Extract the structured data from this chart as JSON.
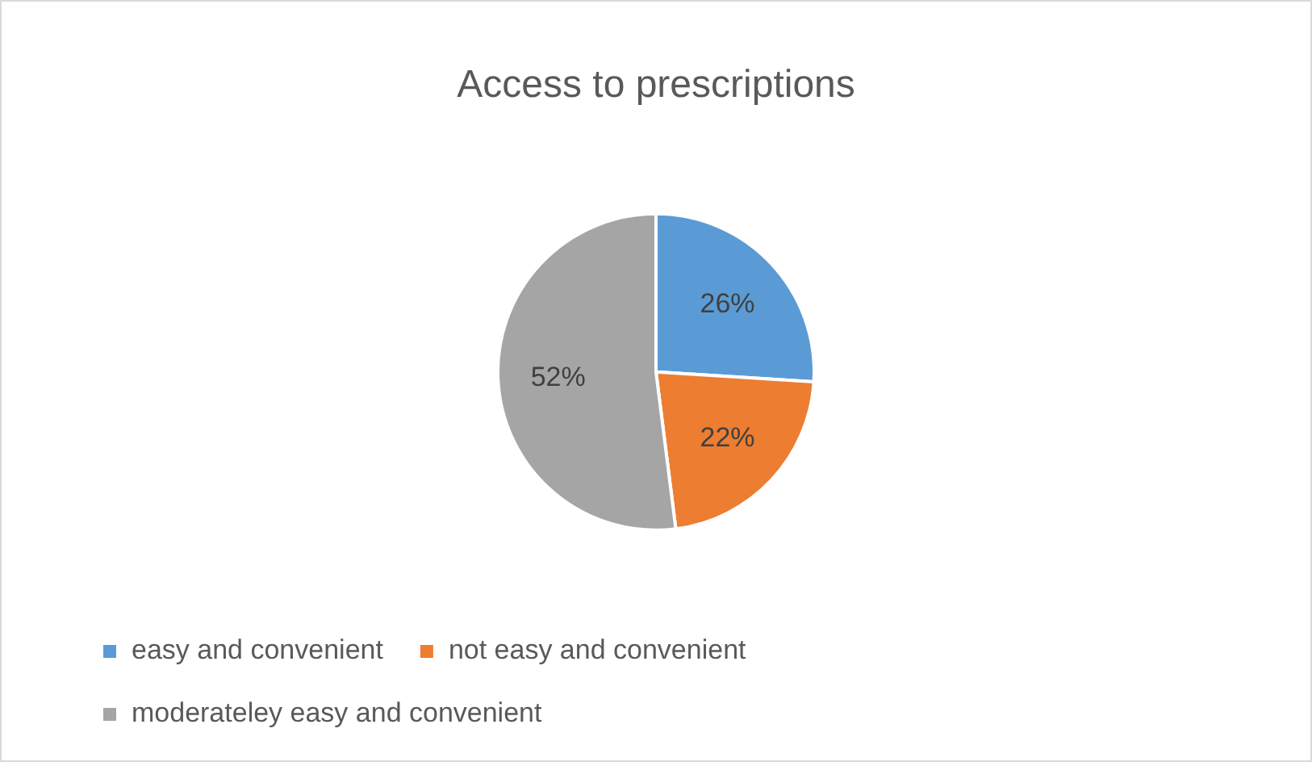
{
  "chart_data": {
    "type": "pie",
    "title": "Access to prescriptions",
    "categories": [
      "easy and convenient",
      "not easy and convenient",
      "moderateley easy and convenient"
    ],
    "values": [
      26,
      22,
      52
    ],
    "colors": [
      "#5b9bd5",
      "#ed7d31",
      "#a5a5a5"
    ],
    "value_labels": [
      "26%",
      "22%",
      "52%"
    ],
    "legend": "bottom"
  }
}
